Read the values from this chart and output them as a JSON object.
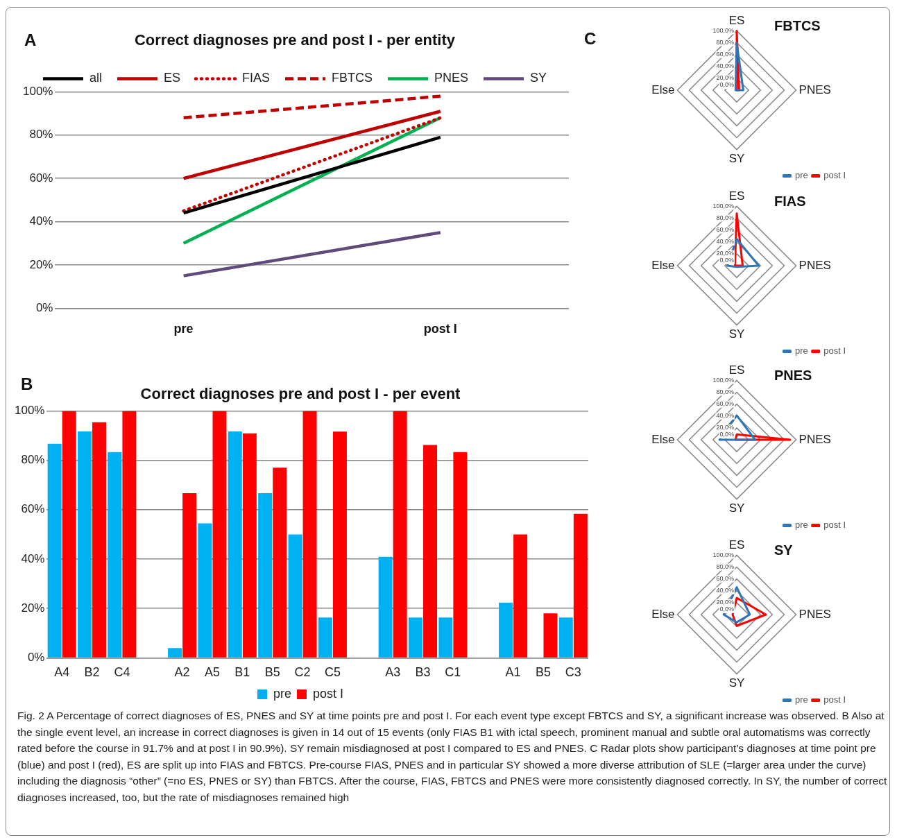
{
  "chart_data": [
    {
      "type": "line",
      "title": "Correct diagnoses pre and post I - per entity",
      "annotations": [
        "A"
      ],
      "categories": [
        "pre",
        "post I"
      ],
      "series": [
        {
          "name": "all",
          "color": "#000000",
          "line_style": "solid",
          "values": [
            44,
            79
          ]
        },
        {
          "name": "ES",
          "color": "#c00000",
          "line_style": "solid",
          "values": [
            60,
            91
          ]
        },
        {
          "name": "FIAS",
          "color": "#c00000",
          "line_style": "dotted",
          "values": [
            45,
            88
          ]
        },
        {
          "name": "FBTCS",
          "color": "#c00000",
          "line_style": "dashed",
          "values": [
            88,
            98
          ]
        },
        {
          "name": "PNES",
          "color": "#00b050",
          "line_style": "solid",
          "values": [
            30,
            88
          ]
        },
        {
          "name": "SY",
          "color": "#604a7b",
          "line_style": "solid",
          "values": [
            15,
            35
          ]
        }
      ],
      "ylim": [
        0,
        100
      ],
      "yticks": [
        {
          "value": 0,
          "label": "0%"
        },
        {
          "value": 20,
          "label": "20%"
        },
        {
          "value": 40,
          "label": "40%"
        },
        {
          "value": 60,
          "label": "60%"
        },
        {
          "value": 80,
          "label": "80%"
        },
        {
          "value": 100,
          "label": "100%"
        }
      ],
      "grid": "y",
      "legend": "top",
      "marker": "none"
    },
    {
      "type": "bar",
      "title": "Correct diagnoses pre and post I - per event",
      "annotations": [
        "B"
      ],
      "categories": [
        "A4",
        "B2",
        "C4",
        null,
        "A2",
        "A5",
        "B1",
        "B5",
        "C2",
        "C5",
        null,
        "A3",
        "B3",
        "C1",
        null,
        "A1",
        "B5",
        "C3"
      ],
      "series": [
        {
          "name": "pre",
          "color": "#00b0f0",
          "values": [
            86.7,
            91.7,
            83.3,
            null,
            4,
            54.5,
            91.7,
            66.7,
            50,
            16.3,
            null,
            40.9,
            16.3,
            16.3,
            null,
            22.4,
            0,
            16.3
          ]
        },
        {
          "name": "post I",
          "color": "#ff0000",
          "values": [
            100,
            95.4,
            100,
            null,
            66.7,
            100,
            90.9,
            77,
            100,
            91.6,
            null,
            100,
            86.2,
            83.3,
            null,
            50,
            18,
            58.3
          ]
        }
      ],
      "ylim": [
        0,
        100
      ],
      "yticks": [
        {
          "value": 0,
          "label": "0%"
        },
        {
          "value": 20,
          "label": "20%"
        },
        {
          "value": 40,
          "label": "40%"
        },
        {
          "value": 60,
          "label": "60%"
        },
        {
          "value": 80,
          "label": "80%"
        },
        {
          "value": 100,
          "label": "100%"
        }
      ],
      "grid": "y",
      "legend": "bottom"
    },
    {
      "type": "radar",
      "title": "FBTCS",
      "annotations": [
        "C"
      ],
      "categories": [
        "ES",
        "PNES",
        "SY",
        "Else"
      ],
      "series": [
        {
          "name": "pre",
          "color": "#2e75b6",
          "values": [
            80,
            11,
            0,
            2
          ]
        },
        {
          "name": "post I",
          "color": "#ff0000",
          "values": [
            100,
            4,
            0,
            0
          ]
        }
      ],
      "ylim": [
        0,
        100
      ],
      "yticks": [
        {
          "value": 0,
          "label": "0,0%"
        },
        {
          "value": 20,
          "label": "20,0%"
        },
        {
          "value": 40,
          "label": "40,0%"
        },
        {
          "value": 60,
          "label": "60,0%"
        },
        {
          "value": 80,
          "label": "80,0%"
        },
        {
          "value": 100,
          "label": "100,0%"
        }
      ],
      "grid": true,
      "legend": "bottom right"
    },
    {
      "type": "radar",
      "title": "FIAS",
      "categories": [
        "ES",
        "PNES",
        "SY",
        "Else"
      ],
      "series": [
        {
          "name": "pre",
          "color": "#2e75b6",
          "values": [
            45,
            37,
            2,
            16
          ]
        },
        {
          "name": "post I",
          "color": "#ff0000",
          "values": [
            88,
            10,
            0,
            3
          ]
        }
      ],
      "ylim": [
        0,
        100
      ],
      "yticks": [
        {
          "value": 0,
          "label": "0,0%"
        },
        {
          "value": 20,
          "label": "20,0%"
        },
        {
          "value": 40,
          "label": "40,0%"
        },
        {
          "value": 60,
          "label": "60,0%"
        },
        {
          "value": 80,
          "label": "80,0%"
        },
        {
          "value": 100,
          "label": "100,0%"
        }
      ],
      "grid": true,
      "legend": "bottom right"
    },
    {
      "type": "radar",
      "title": "PNES",
      "categories": [
        "ES",
        "PNES",
        "SY",
        "Else"
      ],
      "series": [
        {
          "name": "pre",
          "color": "#2e75b6",
          "values": [
            41,
            31,
            0,
            29
          ]
        },
        {
          "name": "post I",
          "color": "#ff0000",
          "values": [
            9,
            90,
            0,
            2
          ]
        }
      ],
      "ylim": [
        0,
        100
      ],
      "yticks": [
        {
          "value": 0,
          "label": "0,0%"
        },
        {
          "value": 20,
          "label": "20,0%"
        },
        {
          "value": 40,
          "label": "40,0%"
        },
        {
          "value": 60,
          "label": "60,0%"
        },
        {
          "value": 80,
          "label": "80,0%"
        },
        {
          "value": 100,
          "label": "100,0%"
        }
      ],
      "grid": true,
      "legend": "bottom right"
    },
    {
      "type": "radar",
      "title": "SY",
      "categories": [
        "ES",
        "PNES",
        "SY",
        "Else"
      ],
      "series": [
        {
          "name": "pre",
          "color": "#2e75b6",
          "values": [
            46,
            22,
            13,
            22
          ]
        },
        {
          "name": "post I",
          "color": "#ff0000",
          "values": [
            28,
            49,
            19,
            7
          ]
        }
      ],
      "ylim": [
        0,
        100
      ],
      "yticks": [
        {
          "value": 0,
          "label": "0,0%"
        },
        {
          "value": 20,
          "label": "20,0%"
        },
        {
          "value": 40,
          "label": "40,0%"
        },
        {
          "value": 60,
          "label": "60,0%"
        },
        {
          "value": 80,
          "label": "80,0%"
        },
        {
          "value": 100,
          "label": "100,0%"
        }
      ],
      "grid": true,
      "legend": "bottom right"
    },
    {
      "type": "other",
      "annotations": [
        "Fig. 2 A Percentage of correct diagnoses of ES, PNES and SY at time points pre and post I. For each event type except FBTCS and SY, a significant increase was observed. B Also at the single event level, an increase in correct diagnoses is given in 14 out of 15 events (only FIAS B1 with ictal speech, prominent manual and subtle oral automatisms was correctly rated before the course in 91.7% and at post I in 90.9%). SY remain misdiagnosed at post I compared to ES and PNES. C Radar plots show participant’s diagnoses at time point pre (blue) and post I (red), ES are split up into FIAS and FBTCS. Pre-course FIAS, PNES and in particular SY showed a more diverse attribution of SLE (=larger area under the curve) including the diagnosis “other” (=no ES, PNES or SY) than FBTCS. After the course, FIAS, FBTCS and PNES were more consistently diagnosed correctly. In SY, the number of correct diagnoses increased, too, but the rate of misdiagnoses remained high"
      ]
    }
  ]
}
